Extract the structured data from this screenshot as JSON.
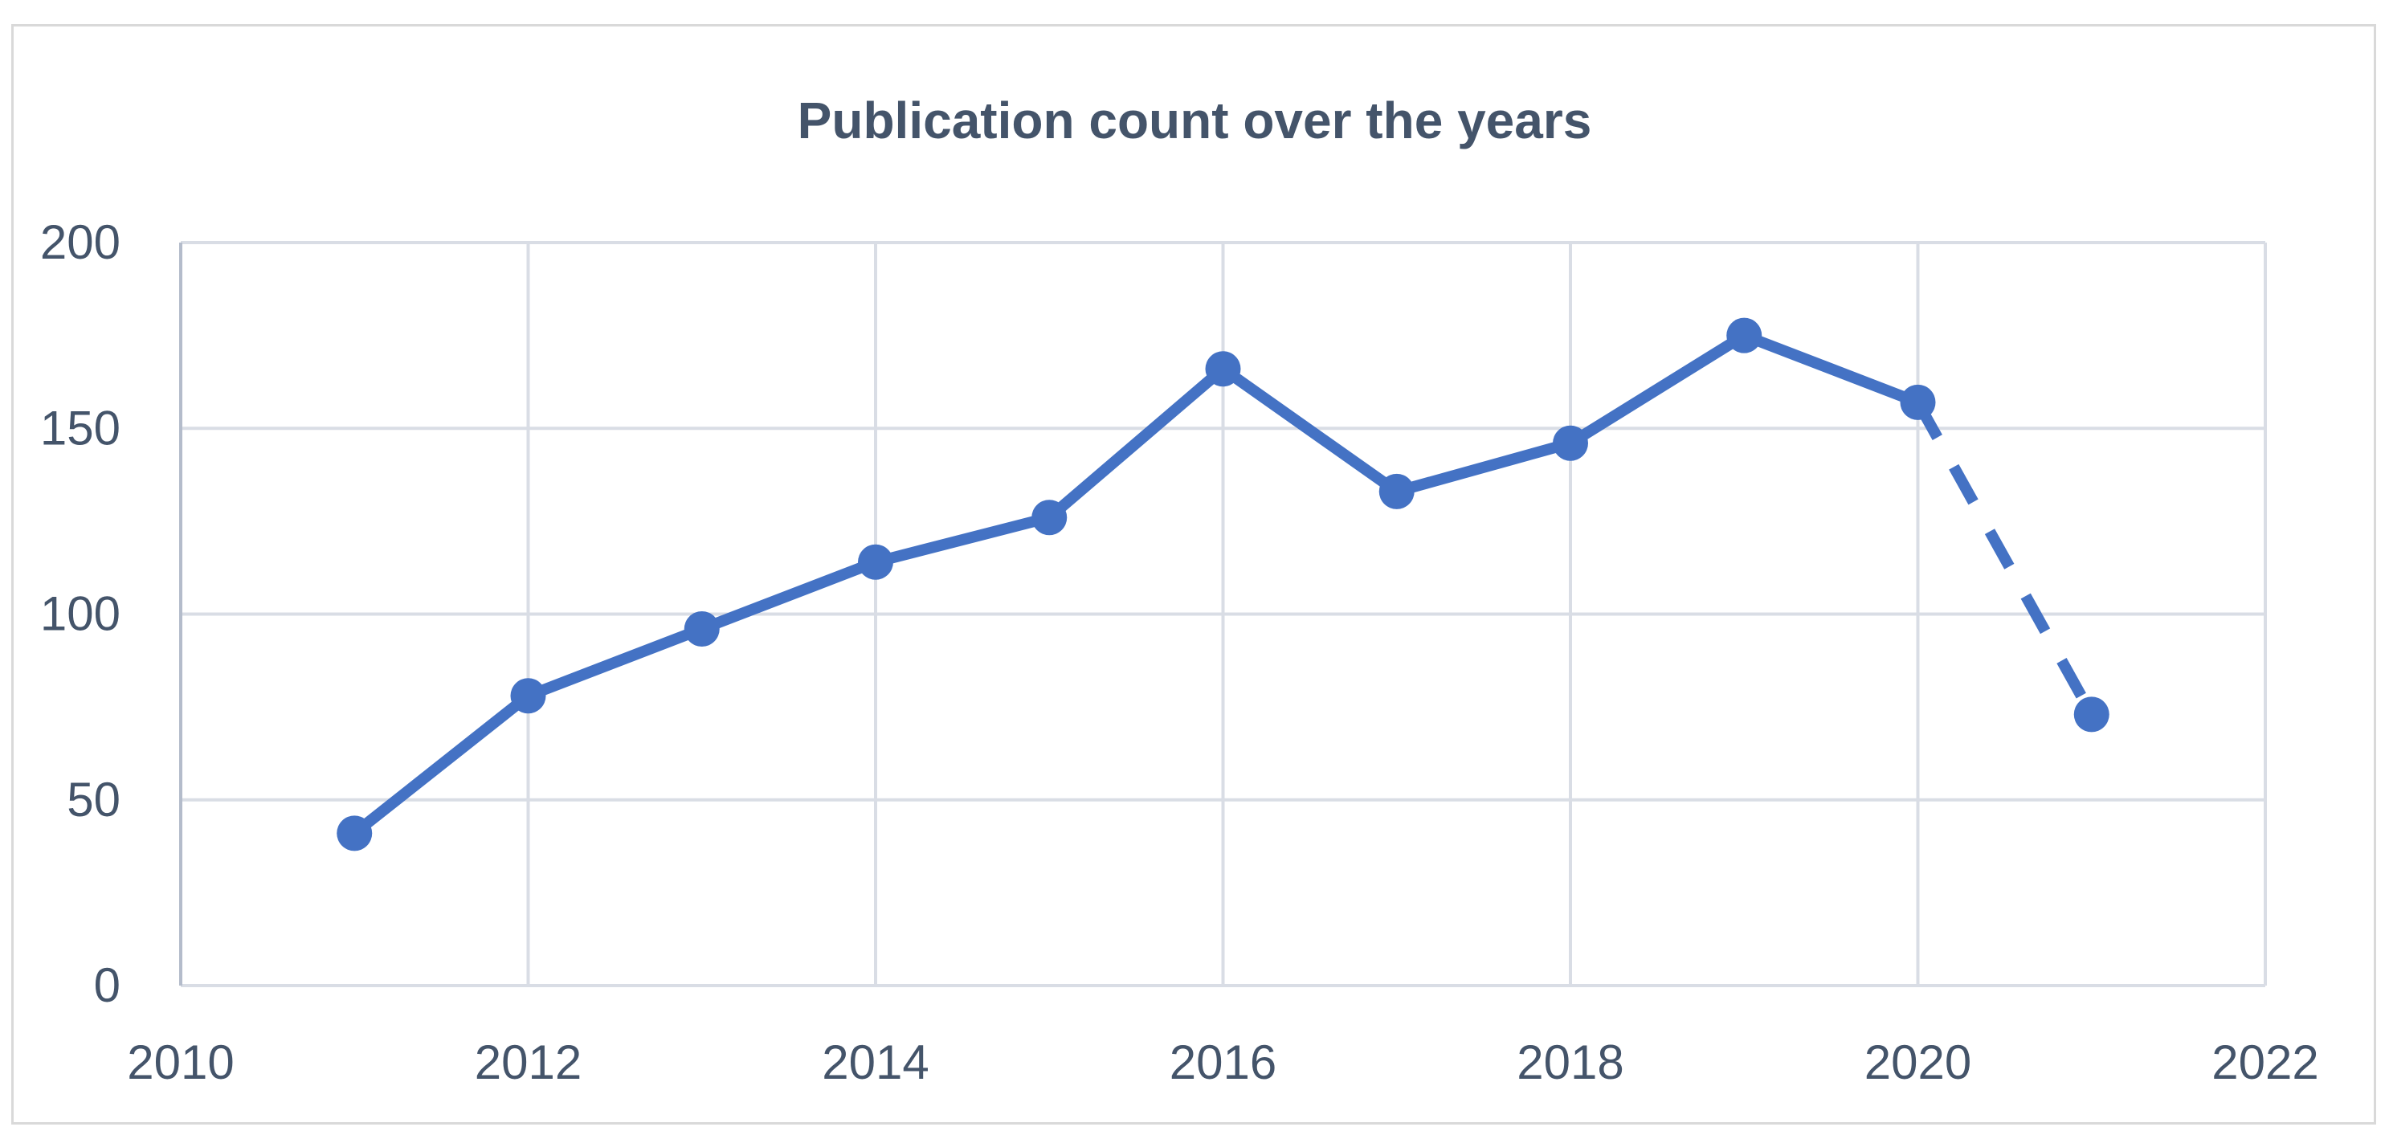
{
  "chart_data": {
    "type": "line",
    "title": "Publication count over the years",
    "xlabel": "",
    "ylabel": "",
    "xlim": [
      2010,
      2022
    ],
    "ylim": [
      0,
      200
    ],
    "x_ticks": [
      2010,
      2012,
      2014,
      2016,
      2018,
      2020,
      2022
    ],
    "y_ticks": [
      0,
      50,
      100,
      150,
      200
    ],
    "grid": true,
    "legend": "none",
    "series": [
      {
        "x": [
          2011,
          2012,
          2013,
          2014,
          2015,
          2016,
          2017,
          2018,
          2019,
          2020
        ],
        "y": [
          41,
          78,
          96,
          114,
          126,
          166,
          133,
          146,
          175,
          157
        ],
        "style": "solid"
      },
      {
        "x": [
          2020,
          2021
        ],
        "y": [
          157,
          73
        ],
        "style": "dashed"
      }
    ],
    "colors": {
      "line": "#4472c4",
      "grid": "#d9dde5",
      "text": "#44546a",
      "axis": "#b4bccb"
    }
  }
}
